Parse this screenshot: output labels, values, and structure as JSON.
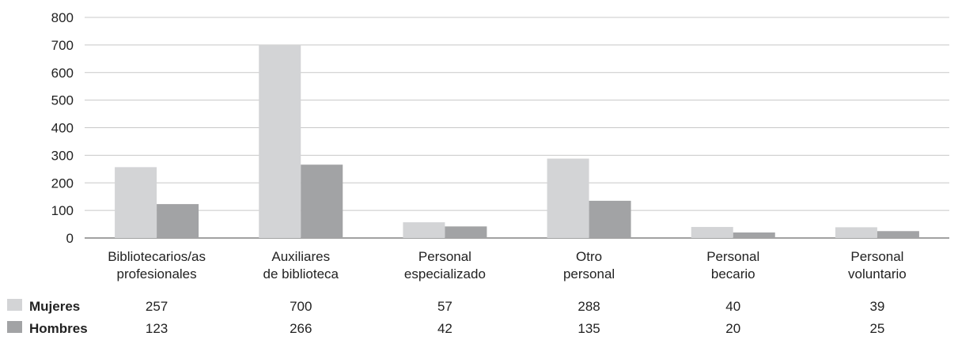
{
  "chart_data": {
    "type": "bar",
    "categories": [
      [
        "Bibliotecarios/as",
        "profesionales"
      ],
      [
        "Auxiliares",
        "de biblioteca"
      ],
      [
        "Personal",
        "especializado"
      ],
      [
        "Otro",
        "personal"
      ],
      [
        "Personal",
        "becario"
      ],
      [
        "Personal",
        "voluntario"
      ]
    ],
    "series": [
      {
        "name": "Mujeres",
        "color": "#d3d4d6",
        "values": [
          257,
          700,
          57,
          288,
          40,
          39
        ]
      },
      {
        "name": "Hombres",
        "color": "#a2a3a5",
        "values": [
          123,
          266,
          42,
          135,
          20,
          25
        ]
      }
    ],
    "ylim": [
      0,
      800
    ],
    "yticks": [
      0,
      100,
      200,
      300,
      400,
      500,
      600,
      700,
      800
    ],
    "grid": true,
    "legend": "data-table-below"
  }
}
